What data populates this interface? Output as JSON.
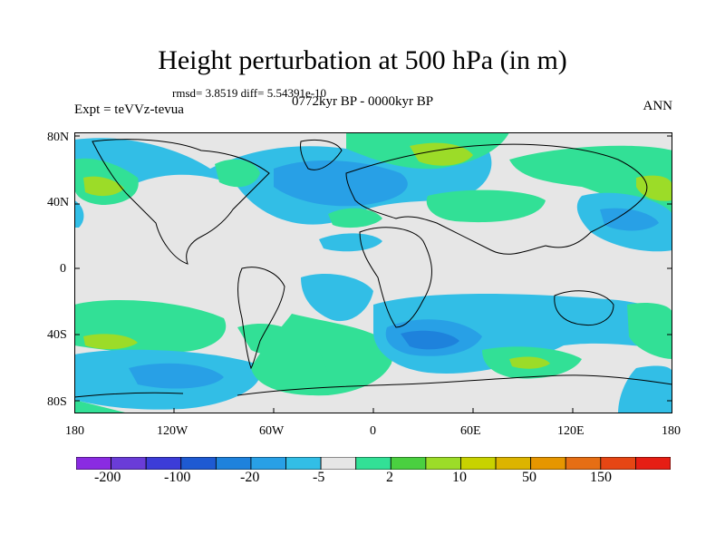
{
  "header": {
    "title": "Height perturbation at 500 hPa (in m)",
    "stats": "rmsd= 3.8519 diff= 5.54391e-10",
    "experiment": "Expt = teVVz-tevua",
    "period": "0772kyr BP - 0000kyr BP",
    "season": "ANN"
  },
  "axes": {
    "lat_labels": [
      "80N",
      "40N",
      "0",
      "40S",
      "80S"
    ],
    "lon_labels": [
      "180",
      "120W",
      "60W",
      "0",
      "60E",
      "120E",
      "180"
    ]
  },
  "colorbar": {
    "colors": [
      "#8a2be2",
      "#6a3cd8",
      "#3c3cd8",
      "#1e5ad2",
      "#1e82dc",
      "#28a0e6",
      "#32bee6",
      "#e6e6e6",
      "#32e096",
      "#4ad040",
      "#9cdc28",
      "#c8d200",
      "#dcb400",
      "#e69600",
      "#e66e14",
      "#e64614",
      "#e61e14"
    ],
    "labels": [
      "-200",
      "-100",
      "-20",
      "-5",
      "2",
      "10",
      "50",
      "150"
    ]
  },
  "field_colors": {
    "background": "#e6e6e6",
    "blue_light": "#32bee6",
    "blue_mid": "#28a0e6",
    "blue_dark": "#1e82dc",
    "green": "#32e096",
    "green_dark": "#4ad040",
    "yellow_green": "#9cdc28"
  }
}
